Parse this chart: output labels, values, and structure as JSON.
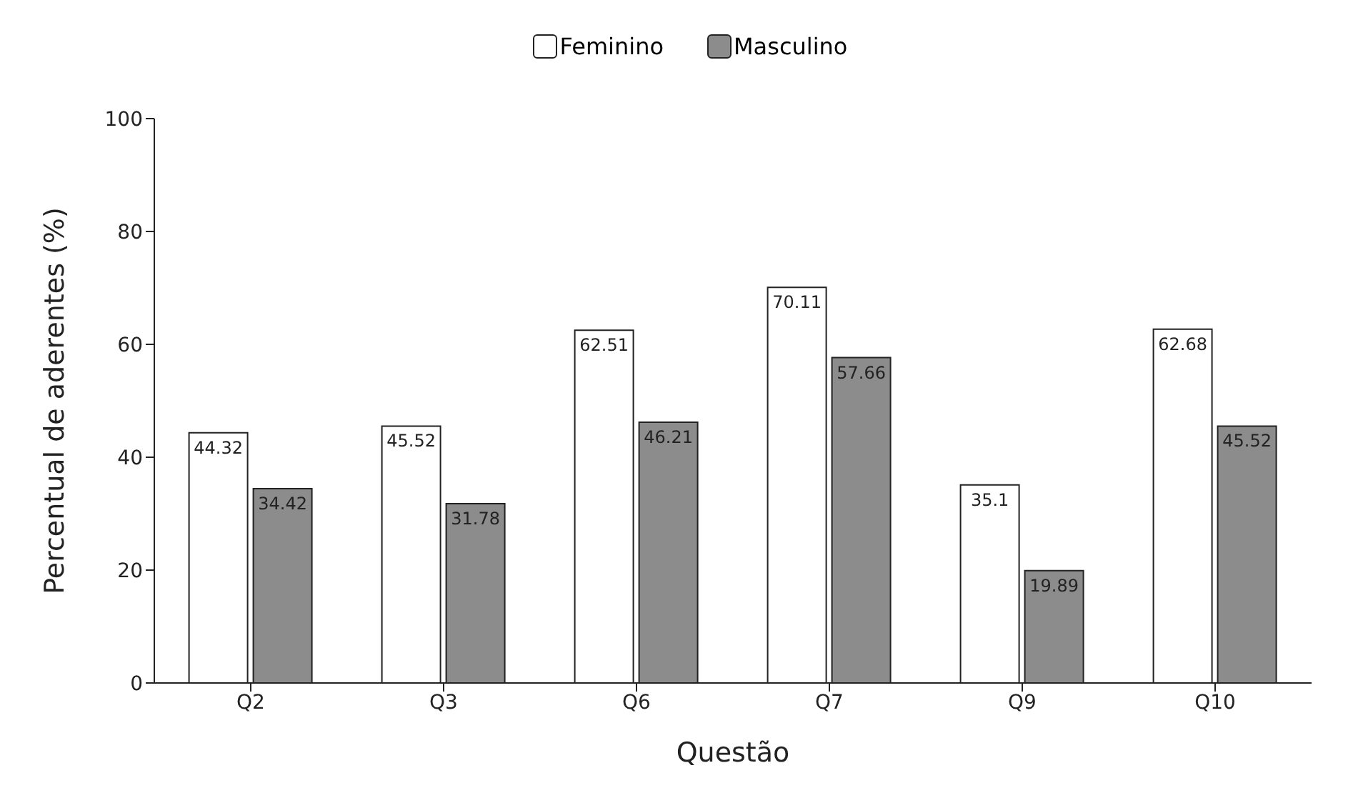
{
  "chart_data": {
    "type": "bar",
    "xlabel": "Questão",
    "ylabel": "Percentual de aderentes (%)",
    "categories": [
      "Q2",
      "Q3",
      "Q6",
      "Q7",
      "Q9",
      "Q10"
    ],
    "series": [
      {
        "name": "Feminino",
        "color": "#ffffff",
        "values": [
          44.32,
          45.52,
          62.51,
          70.11,
          35.1,
          62.68
        ]
      },
      {
        "name": "Masculino",
        "color": "#8c8c8c",
        "values": [
          34.42,
          31.78,
          46.21,
          57.66,
          19.89,
          45.52
        ]
      }
    ],
    "ylim": [
      0,
      100
    ],
    "yticks": [
      0,
      20,
      40,
      60,
      80,
      100
    ],
    "grid": false,
    "legend": "top",
    "data_labels": true
  }
}
